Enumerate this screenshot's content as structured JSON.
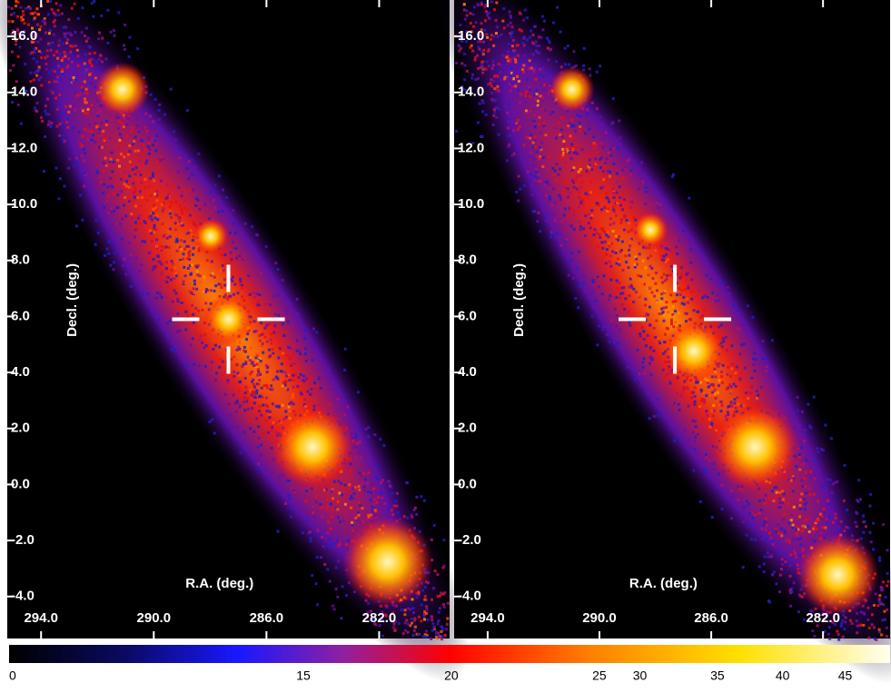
{
  "chart_data": [
    {
      "type": "heatmap",
      "xlabel": "R.A. (deg.)",
      "ylabel": "Decl. (deg.)",
      "xlim": [
        295.2,
        279.5
      ],
      "ylim": [
        -5.5,
        17.3
      ],
      "xticks": [
        {
          "value": 294,
          "label": "294.0"
        },
        {
          "value": 290,
          "label": "290.0"
        },
        {
          "value": 286,
          "label": "286.0"
        },
        {
          "value": 282,
          "label": "282.0"
        }
      ],
      "yticks": [
        {
          "value": -4,
          "label": "-4.0"
        },
        {
          "value": -2,
          "label": "-2.0"
        },
        {
          "value": 0,
          "label": "0.0"
        },
        {
          "value": 2,
          "label": "2.0"
        },
        {
          "value": 4,
          "label": "4.0"
        },
        {
          "value": 6,
          "label": "6.0"
        },
        {
          "value": 8,
          "label": "8.0"
        },
        {
          "value": 10,
          "label": "10.0"
        },
        {
          "value": 12,
          "label": "12.0"
        },
        {
          "value": 14,
          "label": "14.0"
        },
        {
          "value": 16,
          "label": "16.0"
        }
      ],
      "marker": {
        "x": 287.35,
        "y": 5.9
      }
    },
    {
      "type": "heatmap",
      "xlabel": "R.A. (deg.)",
      "ylabel": "Decl. (deg.)",
      "xlim": [
        295.2,
        279.6
      ],
      "ylim": [
        -5.5,
        17.3
      ],
      "xticks": [
        {
          "value": 294,
          "label": "294.0"
        },
        {
          "value": 290,
          "label": "290.0"
        },
        {
          "value": 286,
          "label": "286.0"
        },
        {
          "value": 282,
          "label": "282.0"
        }
      ],
      "yticks": [
        {
          "value": -4,
          "label": "-4.0"
        },
        {
          "value": -2,
          "label": "-2.0"
        },
        {
          "value": 0,
          "label": "0.0"
        },
        {
          "value": 2,
          "label": "2.0"
        },
        {
          "value": 4,
          "label": "4.0"
        },
        {
          "value": 6,
          "label": "6.0"
        },
        {
          "value": 8,
          "label": "8.0"
        },
        {
          "value": 10,
          "label": "10.0"
        },
        {
          "value": 12,
          "label": "12.0"
        },
        {
          "value": 14,
          "label": "14.0"
        },
        {
          "value": 16,
          "label": "16.0"
        }
      ],
      "marker": {
        "x": 287.3,
        "y": 5.9
      }
    },
    {
      "type": "colorbar",
      "xticks": [
        0,
        15,
        20,
        25,
        30,
        35,
        40,
        45
      ]
    }
  ]
}
